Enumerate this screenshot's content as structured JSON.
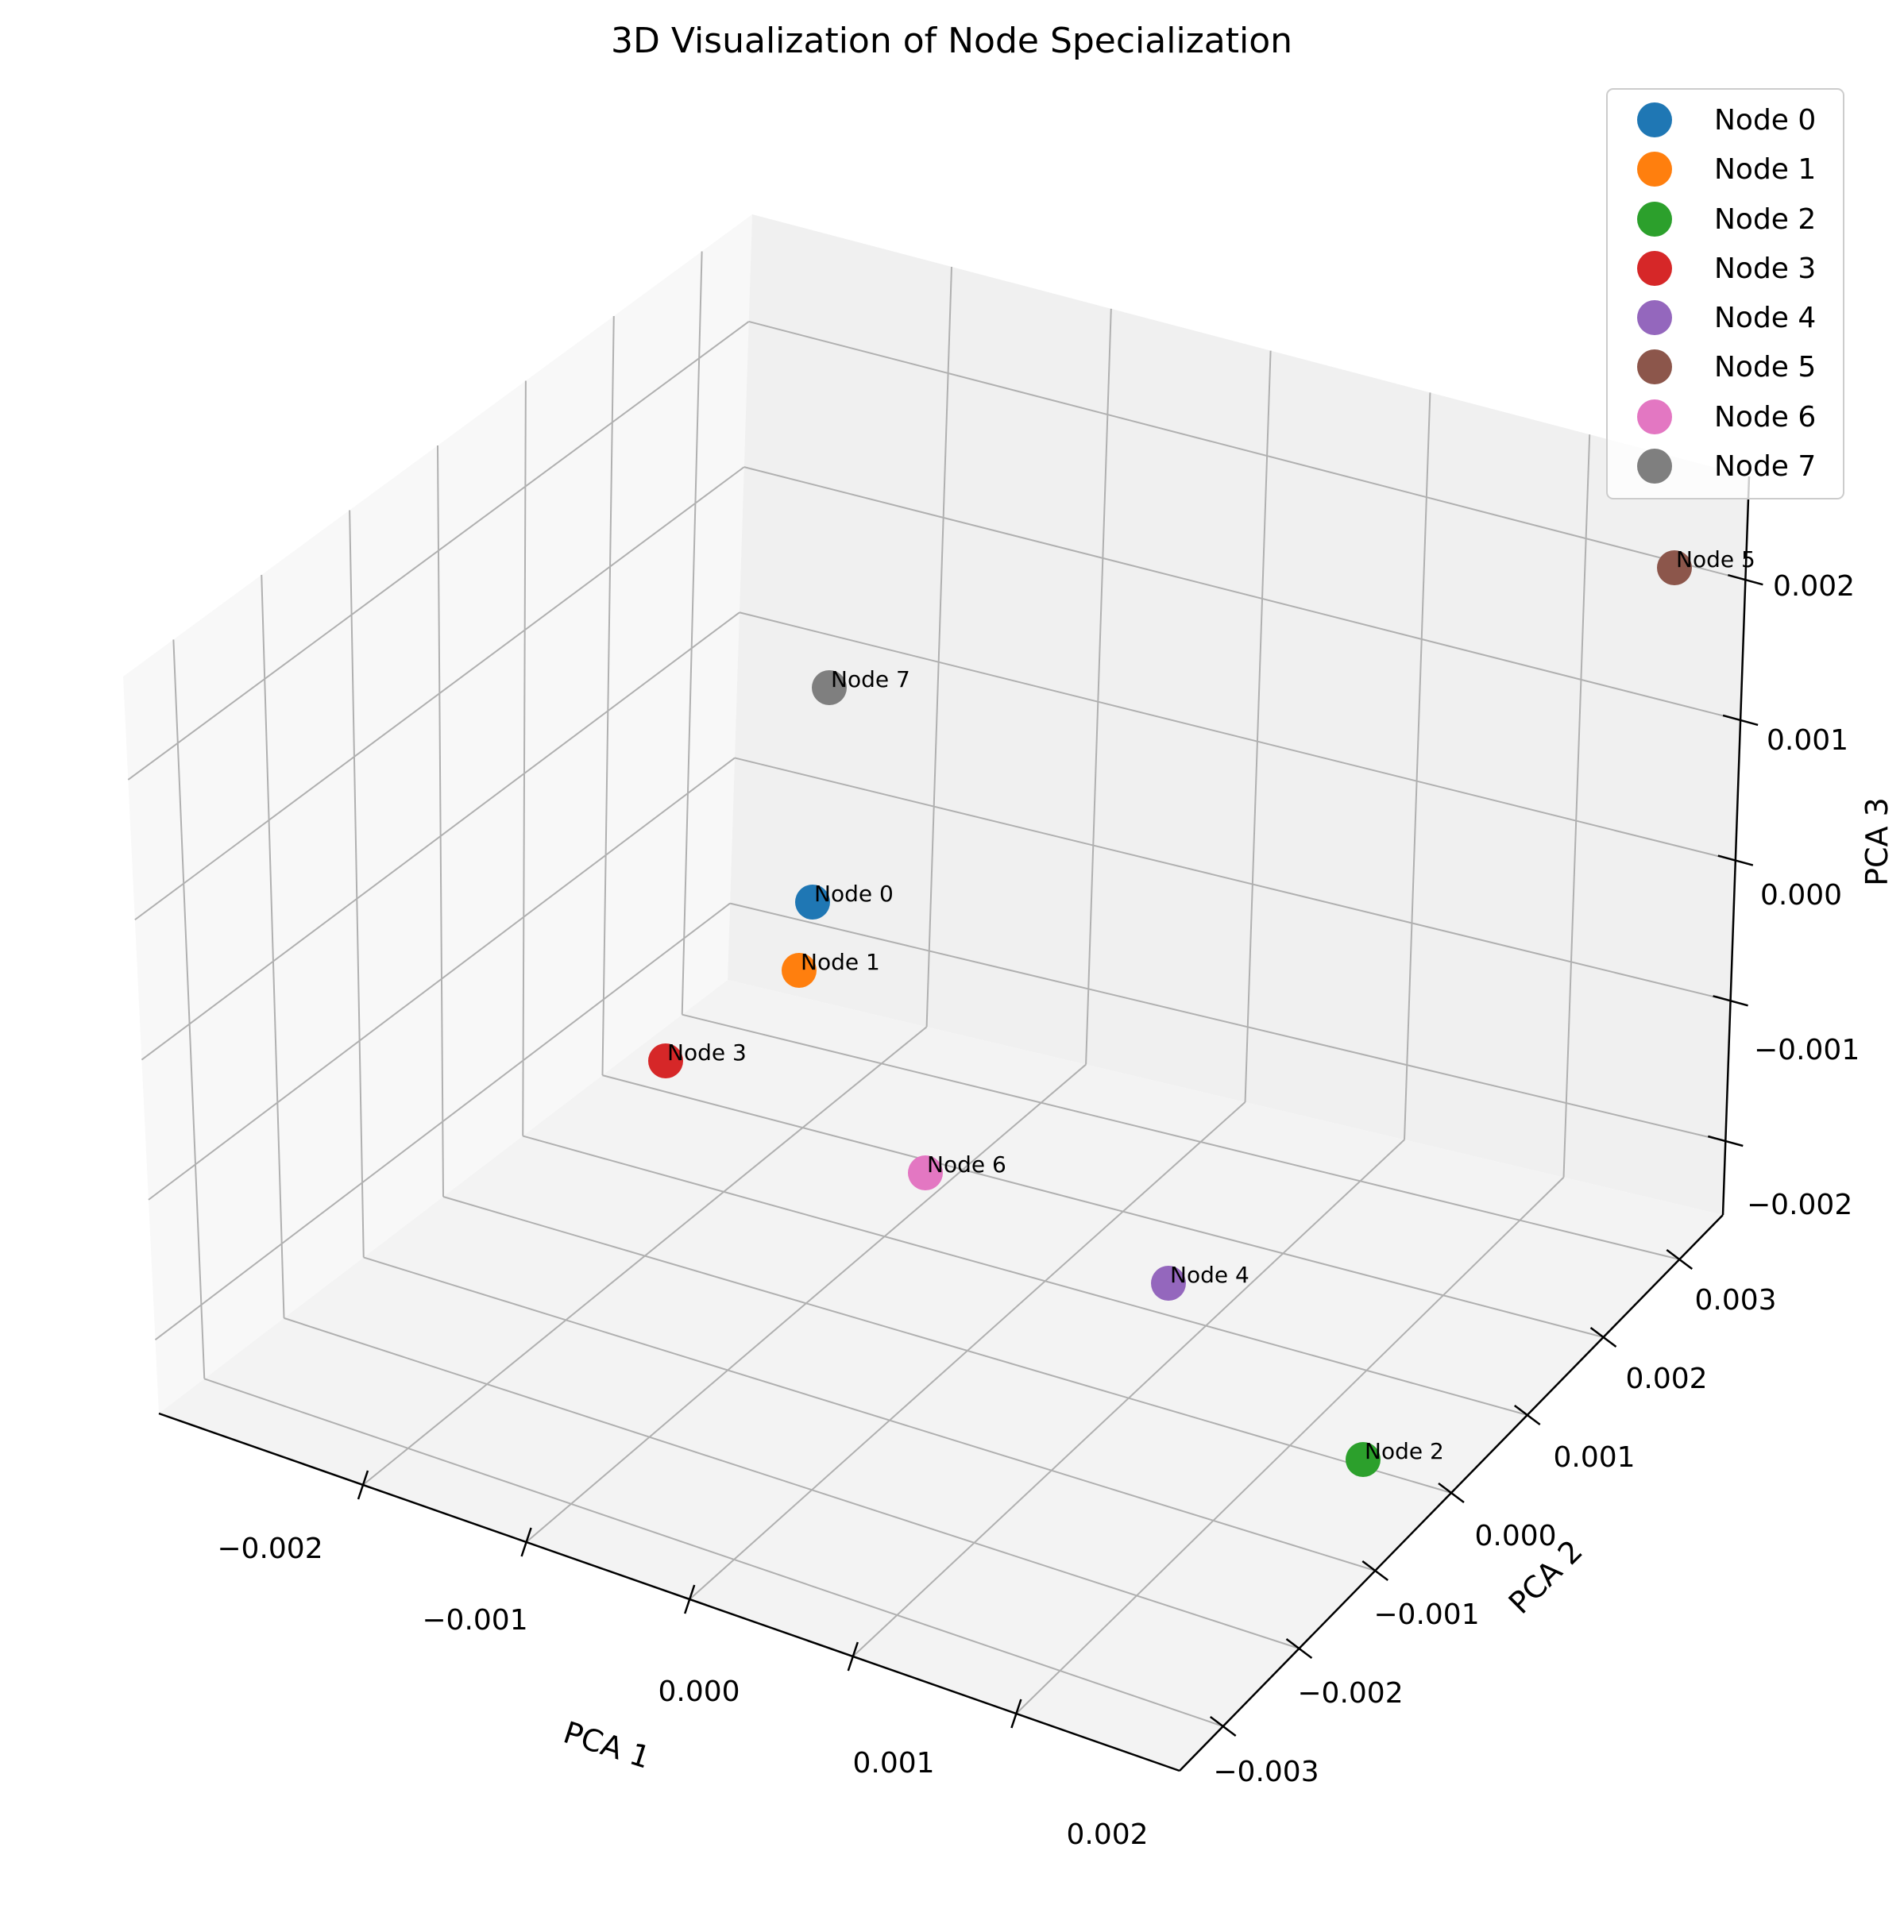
{
  "chart_data": {
    "type": "scatter3d",
    "title": "3D Visualization of Node Specialization",
    "xlabel": "PCA 1",
    "ylabel": "PCA 2",
    "zlabel": "PCA 3",
    "grid": true,
    "legend_position": "top-right",
    "x_ticks": [
      "−0.002",
      "−0.001",
      "0.000",
      "0.001",
      "0.002"
    ],
    "y_ticks": [
      "−0.003",
      "−0.002",
      "−0.001",
      "0.000",
      "0.001",
      "0.002",
      "0.003"
    ],
    "z_ticks": [
      "0.002",
      "0.001",
      "0.000",
      "−0.001",
      "−0.002"
    ],
    "series": [
      {
        "name": "Node 0",
        "label": "Node 0",
        "color": "#1f77b4",
        "x": -0.0013,
        "y": 0.001,
        "z": -0.0004
      },
      {
        "name": "Node 1",
        "label": "Node 1",
        "color": "#ff7f0e",
        "x": -0.0013,
        "y": 0.0006,
        "z": -0.0006
      },
      {
        "name": "Node 2",
        "label": "Node 2",
        "color": "#2ca02c",
        "x": 0.0012,
        "y": -0.003,
        "z": -0.001
      },
      {
        "name": "Node 3",
        "label": "Node 3",
        "color": "#d62728",
        "x": -0.0016,
        "y": -0.0003,
        "z": -0.0008
      },
      {
        "name": "Node 4",
        "label": "Node 4",
        "color": "#9467bd",
        "x": 0.0007,
        "y": -0.0019,
        "z": -0.0009
      },
      {
        "name": "Node 5",
        "label": "Node 5",
        "color": "#8c564b",
        "x": 0.0022,
        "y": 0.001,
        "z": 0.0023
      },
      {
        "name": "Node 6",
        "label": "Node 6",
        "color": "#e377c2",
        "x": -0.0002,
        "y": -0.0014,
        "z": -0.001
      },
      {
        "name": "Node 7",
        "label": "Node 7",
        "color": "#7f7f7f",
        "x": -0.0016,
        "y": 0.003,
        "z": 0.0017
      }
    ]
  }
}
